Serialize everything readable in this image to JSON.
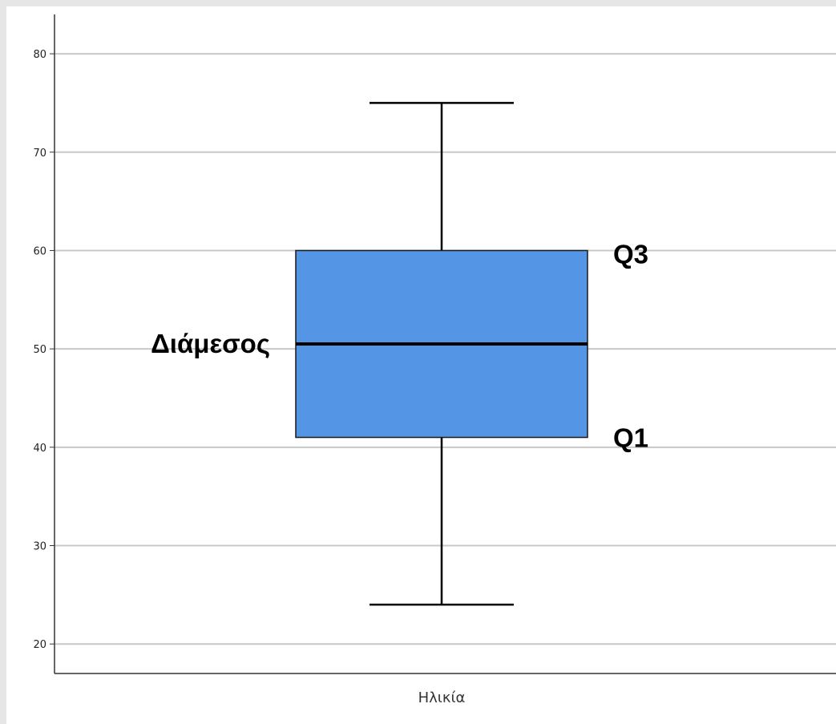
{
  "chart_data": {
    "type": "box",
    "categories": [
      "Ηλικία"
    ],
    "box": {
      "min": 24,
      "q1": 41,
      "median": 50.5,
      "q3": 60,
      "max": 75
    },
    "ylim": [
      17,
      84
    ],
    "yticks": [
      20,
      30,
      40,
      50,
      60,
      70,
      80
    ],
    "grid": true,
    "annotations": {
      "q3": "Q3",
      "median": "Διάμεσος",
      "q1": "Q1"
    }
  },
  "colors": {
    "box_fill": "#5595e5",
    "box_stroke": "#1a1a1a",
    "whisker": "#000000",
    "gridline": "#c8c8c8",
    "axis": "#333333"
  }
}
